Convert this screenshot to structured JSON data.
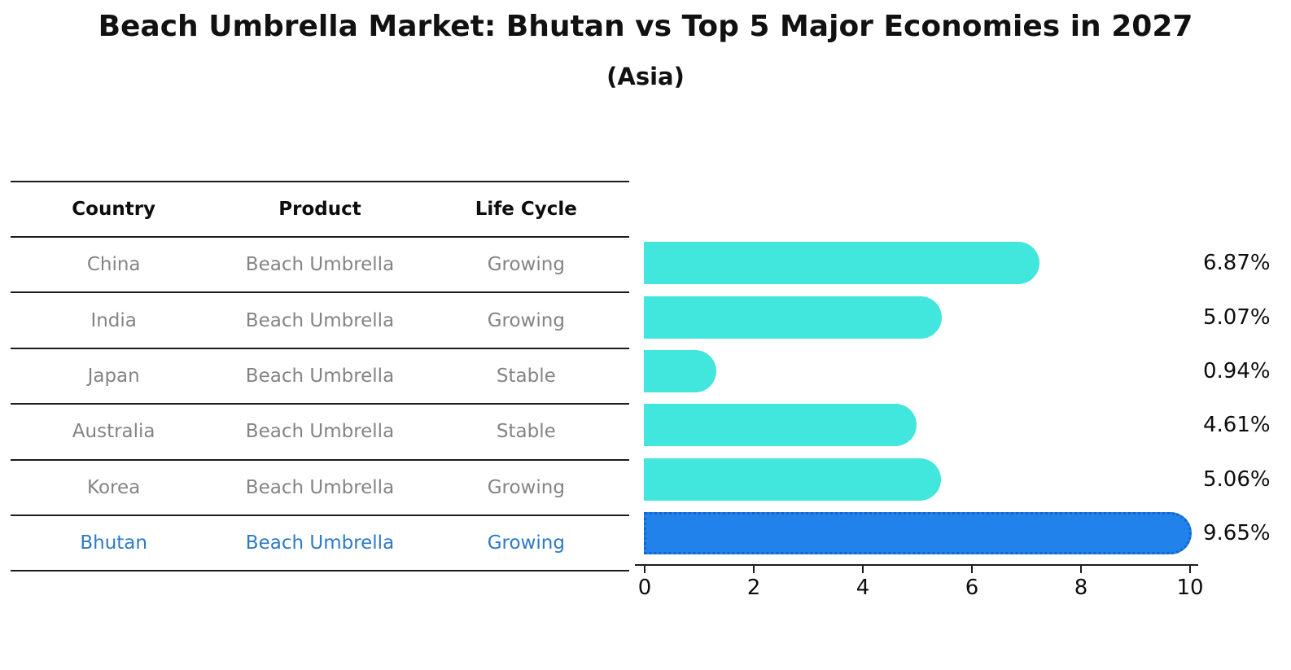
{
  "title": "Beach Umbrella Market: Bhutan vs Top 5 Major Economies in 2027",
  "subtitle": "(Asia)",
  "colors": {
    "bar_default": "#41E6DC",
    "bar_highlight": "#2082EA",
    "bar_highlight_border": "#1565C8",
    "highlight_text": "#2d7ac6",
    "table_text": "#848484"
  },
  "table": {
    "headers": [
      "Country",
      "Product",
      "Life Cycle"
    ],
    "rows": [
      {
        "country": "China",
        "product": "Beach Umbrella",
        "life_cycle": "Growing",
        "highlight": false
      },
      {
        "country": "India",
        "product": "Beach Umbrella",
        "life_cycle": "Growing",
        "highlight": false
      },
      {
        "country": "Japan",
        "product": "Beach Umbrella",
        "life_cycle": "Stable",
        "highlight": false
      },
      {
        "country": "Australia",
        "product": "Beach Umbrella",
        "life_cycle": "Stable",
        "highlight": false
      },
      {
        "country": "Korea",
        "product": "Beach Umbrella",
        "life_cycle": "Growing",
        "highlight": false
      },
      {
        "country": "Bhutan",
        "product": "Beach Umbrella",
        "life_cycle": "Growing",
        "highlight": true
      }
    ]
  },
  "chart_data": {
    "type": "bar",
    "orientation": "horizontal",
    "title": "Beach Umbrella Market: Bhutan vs Top 5 Major Economies in 2027 (Asia)",
    "categories": [
      "China",
      "India",
      "Japan",
      "Australia",
      "Korea",
      "Bhutan"
    ],
    "values": [
      6.87,
      5.07,
      0.94,
      4.61,
      5.06,
      9.65
    ],
    "value_labels": [
      "6.87%",
      "5.07%",
      "0.94%",
      "4.61%",
      "5.06%",
      "9.65%"
    ],
    "highlight_index": 5,
    "xlabel": "",
    "ylabel": "",
    "xlim": [
      0,
      10
    ],
    "x_ticks": [
      0,
      2,
      4,
      6,
      8,
      10
    ],
    "x_tick_labels": [
      "0",
      "2",
      "4",
      "6",
      "8",
      "10"
    ],
    "grid": false,
    "legend": false
  }
}
